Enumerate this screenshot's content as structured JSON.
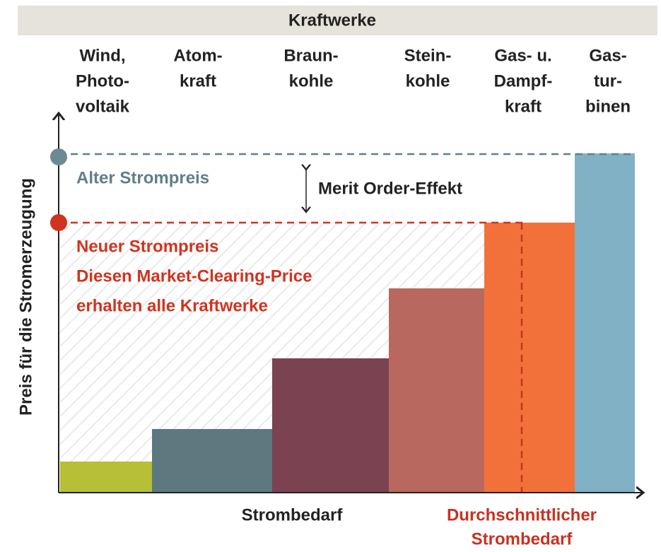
{
  "header": {
    "title": "Kraftwerke"
  },
  "categories": [
    {
      "lines": [
        "Wind,",
        "Photo-",
        "voltaik"
      ]
    },
    {
      "lines": [
        "Atom-",
        "kraft"
      ]
    },
    {
      "lines": [
        "Braun-",
        "kohle"
      ]
    },
    {
      "lines": [
        "Stein-",
        "kohle"
      ]
    },
    {
      "lines": [
        "Gas- u.",
        "Dampf-",
        "kraft"
      ]
    },
    {
      "lines": [
        "Gas-",
        "tur-",
        "binen"
      ]
    }
  ],
  "y_axis_label": "Preis für die Stromerzeugung",
  "x_axis_label": "Strombedarf",
  "old_price": "Alter Strompreis",
  "effect": "Merit Order-Effekt",
  "new_price": {
    "lines": [
      "Neuer Strompreis",
      "Diesen Market-Clearing-Price",
      "erhalten alle Kraftwerke"
    ]
  },
  "average_demand": {
    "lines": [
      "Durchschnittlicher",
      "Strombedarf"
    ]
  }
}
